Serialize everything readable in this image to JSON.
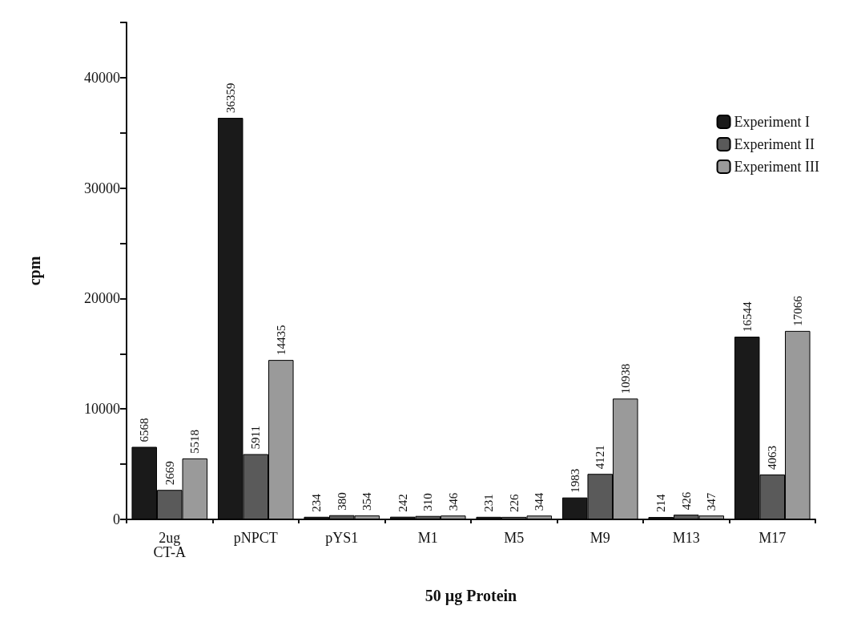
{
  "chart_data": {
    "type": "bar",
    "xlabel": "50 µg Protein",
    "ylabel": "cpm",
    "categories": [
      "2ug\nCT-A",
      "pNPCT",
      "pYS1",
      "M1",
      "M5",
      "M9",
      "M13",
      "M17"
    ],
    "series": [
      {
        "name": "Experiment I",
        "color": "#1a1a1a",
        "values": [
          6568,
          36359,
          234,
          242,
          231,
          1983,
          214,
          16544
        ]
      },
      {
        "name": "Experiment II",
        "color": "#5a5a5a",
        "values": [
          2669,
          5911,
          380,
          310,
          226,
          4121,
          426,
          4063
        ]
      },
      {
        "name": "Experiment III",
        "color": "#9a9a9a",
        "values": [
          5518,
          14435,
          354,
          346,
          344,
          10938,
          347,
          17066
        ]
      }
    ],
    "ylim": [
      0,
      45000
    ],
    "yticks": [
      0,
      {
        "value": 5000,
        "label": null
      },
      10000,
      {
        "value": 15000,
        "label": null
      },
      20000,
      {
        "value": 25000,
        "label": null
      },
      30000,
      {
        "value": 35000,
        "label": null
      },
      40000,
      {
        "value": 45000,
        "label": null
      }
    ],
    "data_labels": true,
    "grid": false,
    "legend": "top right"
  }
}
